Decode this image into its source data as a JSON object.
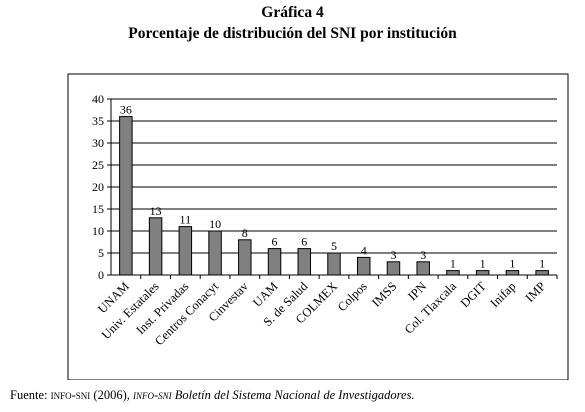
{
  "title": {
    "line1": "Gráfica 4",
    "line2": "Porcentaje de distribución del SNI por institución"
  },
  "chart_data": {
    "type": "bar",
    "categories": [
      "UNAM",
      "Univ. Estatales",
      "Inst. Privadas",
      "Centros Conacyt",
      "Cinvestav",
      "UAM",
      "S. de Salud",
      "COLMEX",
      "Colpos",
      "IMSS",
      "IPN",
      "Col. Tlaxcala",
      "DGIT",
      "Inifap",
      "IMP"
    ],
    "values": [
      36,
      13,
      11,
      10,
      8,
      6,
      6,
      5,
      4,
      3,
      3,
      1,
      1,
      1,
      1
    ],
    "ylim": [
      0,
      40
    ],
    "yticks": [
      0,
      5,
      10,
      15,
      20,
      25,
      30,
      35,
      40
    ],
    "grid": true,
    "legend": "none",
    "bar_color": "#808080",
    "title": "",
    "xlabel": "",
    "ylabel": ""
  },
  "footer": {
    "prefix": "Fuente: ",
    "source_a": "info-sni",
    "year": " (2006), ",
    "source_b": "info-sni",
    "publication": " Boletín del Sistema Nacional de Investigadores."
  }
}
